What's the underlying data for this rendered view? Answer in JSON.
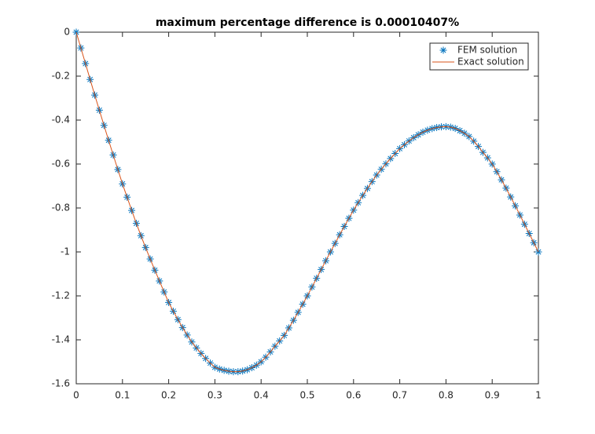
{
  "chart_data": {
    "type": "line",
    "title": "maximum percentage difference is 0.00010407%",
    "x": [
      0,
      0.01,
      0.02,
      0.03,
      0.04,
      0.05,
      0.06,
      0.07,
      0.08,
      0.09,
      0.1,
      0.11,
      0.12,
      0.13,
      0.14,
      0.15,
      0.16,
      0.17,
      0.18,
      0.19,
      0.2,
      0.21,
      0.22,
      0.23,
      0.24,
      0.25,
      0.26,
      0.27,
      0.28,
      0.29,
      0.3,
      0.31,
      0.32,
      0.33,
      0.34,
      0.35,
      0.36,
      0.37,
      0.38,
      0.39,
      0.4,
      0.41,
      0.42,
      0.43,
      0.44,
      0.45,
      0.46,
      0.47,
      0.48,
      0.49,
      0.5,
      0.51,
      0.52,
      0.53,
      0.54,
      0.55,
      0.56,
      0.57,
      0.58,
      0.59,
      0.6,
      0.61,
      0.62,
      0.63,
      0.64,
      0.65,
      0.66,
      0.67,
      0.68,
      0.69,
      0.7,
      0.71,
      0.72,
      0.73,
      0.74,
      0.75,
      0.76,
      0.77,
      0.78,
      0.79,
      0.8,
      0.81,
      0.82,
      0.83,
      0.84,
      0.85,
      0.86,
      0.87,
      0.88,
      0.89,
      0.9,
      0.91,
      0.92,
      0.93,
      0.94,
      0.95,
      0.96,
      0.97,
      0.98,
      0.99,
      1
    ],
    "series": [
      {
        "name": "FEM solution",
        "color": "#0072bd",
        "marker": "asterisk",
        "values": [
          0,
          -0.072,
          -0.143,
          -0.215,
          -0.286,
          -0.355,
          -0.424,
          -0.492,
          -0.559,
          -0.625,
          -0.69,
          -0.751,
          -0.811,
          -0.87,
          -0.926,
          -0.98,
          -1.032,
          -1.083,
          -1.132,
          -1.182,
          -1.23,
          -1.27,
          -1.308,
          -1.344,
          -1.378,
          -1.41,
          -1.437,
          -1.462,
          -1.485,
          -1.506,
          -1.525,
          -1.533,
          -1.539,
          -1.543,
          -1.545,
          -1.545,
          -1.542,
          -1.536,
          -1.527,
          -1.515,
          -1.5,
          -1.479,
          -1.455,
          -1.429,
          -1.405,
          -1.38,
          -1.346,
          -1.311,
          -1.275,
          -1.238,
          -1.2,
          -1.16,
          -1.12,
          -1.08,
          -1.04,
          -1.0,
          -0.961,
          -0.922,
          -0.884,
          -0.847,
          -0.81,
          -0.776,
          -0.743,
          -0.711,
          -0.68,
          -0.65,
          -0.624,
          -0.599,
          -0.575,
          -0.552,
          -0.53,
          -0.512,
          -0.495,
          -0.48,
          -0.467,
          -0.455,
          -0.446,
          -0.439,
          -0.434,
          -0.431,
          -0.43,
          -0.432,
          -0.438,
          -0.448,
          -0.46,
          -0.475,
          -0.496,
          -0.52,
          -0.547,
          -0.572,
          -0.6,
          -0.635,
          -0.672,
          -0.71,
          -0.75,
          -0.79,
          -0.832,
          -0.874,
          -0.916,
          -0.958,
          -1.0
        ]
      },
      {
        "name": "Exact solution",
        "color": "#d95319",
        "marker": "line",
        "values": [
          0,
          -0.072,
          -0.143,
          -0.215,
          -0.286,
          -0.355,
          -0.424,
          -0.492,
          -0.559,
          -0.625,
          -0.69,
          -0.751,
          -0.811,
          -0.87,
          -0.926,
          -0.98,
          -1.032,
          -1.083,
          -1.132,
          -1.182,
          -1.23,
          -1.27,
          -1.308,
          -1.344,
          -1.378,
          -1.41,
          -1.437,
          -1.462,
          -1.485,
          -1.506,
          -1.525,
          -1.533,
          -1.539,
          -1.543,
          -1.545,
          -1.545,
          -1.542,
          -1.536,
          -1.527,
          -1.515,
          -1.5,
          -1.479,
          -1.455,
          -1.429,
          -1.405,
          -1.38,
          -1.346,
          -1.311,
          -1.275,
          -1.238,
          -1.2,
          -1.16,
          -1.12,
          -1.08,
          -1.04,
          -1.0,
          -0.961,
          -0.922,
          -0.884,
          -0.847,
          -0.81,
          -0.776,
          -0.743,
          -0.711,
          -0.68,
          -0.65,
          -0.624,
          -0.599,
          -0.575,
          -0.552,
          -0.53,
          -0.512,
          -0.495,
          -0.48,
          -0.467,
          -0.455,
          -0.446,
          -0.439,
          -0.434,
          -0.431,
          -0.43,
          -0.432,
          -0.438,
          -0.448,
          -0.46,
          -0.475,
          -0.496,
          -0.52,
          -0.547,
          -0.572,
          -0.6,
          -0.635,
          -0.672,
          -0.71,
          -0.75,
          -0.79,
          -0.832,
          -0.874,
          -0.916,
          -0.958,
          -1.0
        ]
      }
    ],
    "xlim": [
      0,
      1
    ],
    "xticks": [
      0,
      0.1,
      0.2,
      0.3,
      0.4,
      0.5,
      0.6,
      0.7,
      0.8,
      0.9,
      1
    ],
    "ylim": [
      -1.6,
      0
    ],
    "yticks": [
      0,
      -0.2,
      -0.4,
      -0.6,
      -0.8,
      -1,
      -1.2,
      -1.4,
      -1.6
    ],
    "grid": false,
    "legend": "northeast"
  }
}
